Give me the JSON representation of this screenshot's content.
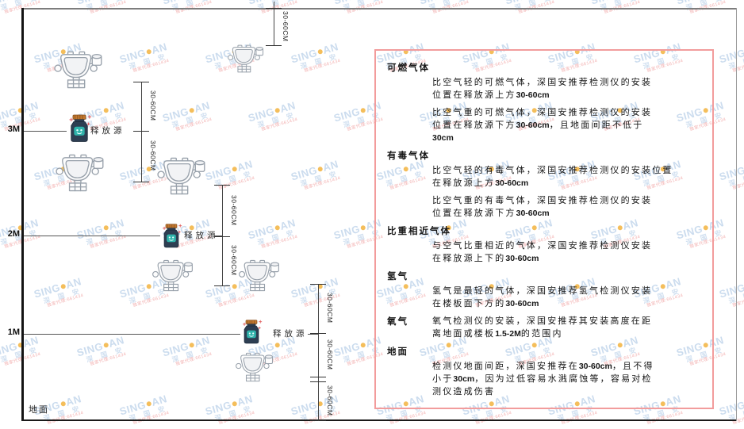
{
  "brand": {
    "logo_pre": "SING",
    "logo_post": "AN",
    "logo_dot_color": "#f3b33f",
    "sub_text": "深 国 安",
    "code_text": "独家代理:661434",
    "watermark_color": "#c3d6ec"
  },
  "diagram": {
    "ground_label": "地面",
    "release_source_label": "释放源",
    "dimension_label": "30-60CM",
    "height_markers": [
      "3M",
      "2M",
      "1M"
    ]
  },
  "panel": {
    "border_color": "#f29c9c",
    "sections": [
      {
        "heading": "可燃气体",
        "inline": false,
        "paragraphs": [
          [
            "比空气轻的可燃气体，深国安推荐检测仪的安装",
            "位置在释放源上方30-60cm"
          ],
          [
            "比空气重的可燃气体，深国安推荐检测仪的安装",
            "位置在释放源下方30-60cm，且地面间距不低于",
            "30cm"
          ]
        ]
      },
      {
        "heading": "有毒气体",
        "inline": false,
        "paragraphs": [
          [
            "比空气轻的有毒气体，深国安推荐检测仪的安装位置",
            "在释放源上方30-60cm"
          ],
          [
            "比空气重的有毒气体，深国安推荐检测仪的安装",
            "位置在释放源下方30-60cm"
          ]
        ]
      },
      {
        "heading": "比重相近气体",
        "inline": false,
        "paragraphs": [
          [
            "与空气比重相近的气体，深国安推荐检测仪安装",
            "在释放源上下的30-60cm"
          ]
        ]
      },
      {
        "heading": "氢气",
        "inline": false,
        "paragraphs": [
          [
            "氢气是最轻的气体，深国安推荐氢气检测仪安装",
            "在楼板面下方的30-60cm"
          ]
        ]
      },
      {
        "heading": "氧气",
        "inline": true,
        "paragraphs": [
          [
            "氧气检测仪的安装，深国安推荐其安装高度在距",
            "离地面或楼板1.5-2M的范围内"
          ]
        ]
      },
      {
        "heading": "地面",
        "inline": false,
        "paragraphs": [
          [
            "检测仪地面间距，深国安推荐在30-60cm，且不得",
            "小于30cm，因为过低容易水溅腐蚀等，容易对检",
            "测仪造成伤害"
          ]
        ]
      }
    ]
  }
}
